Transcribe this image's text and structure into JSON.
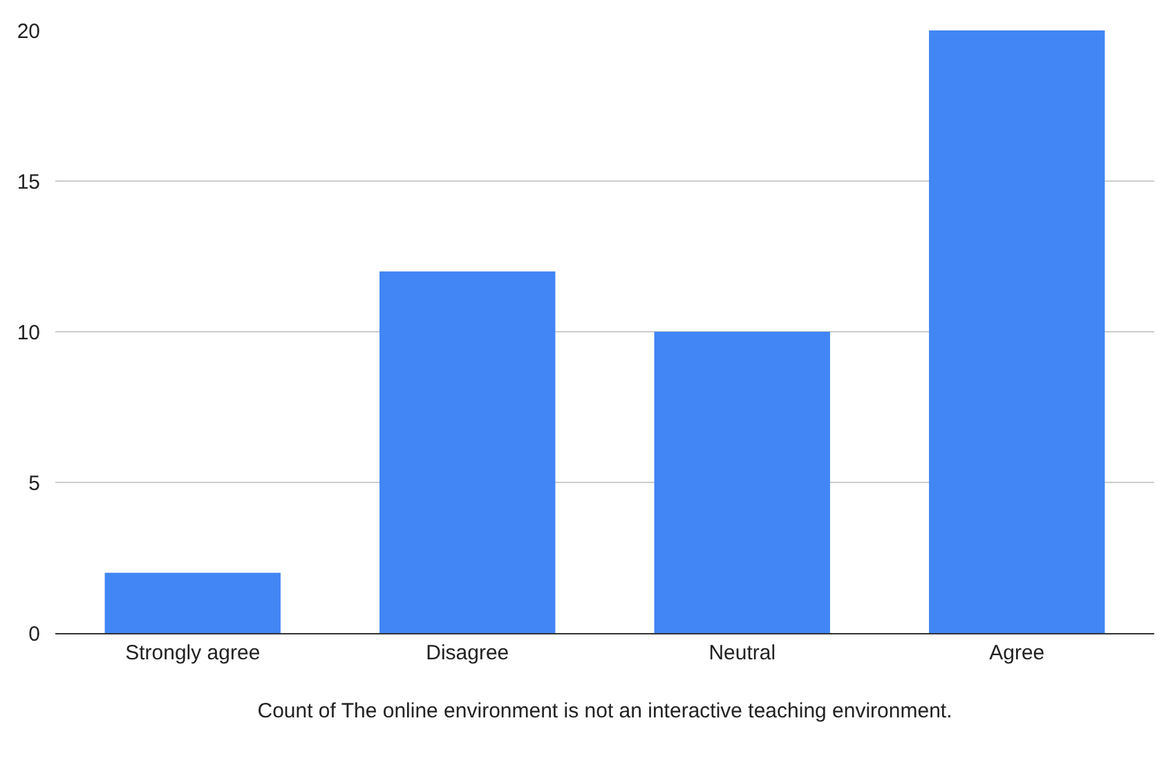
{
  "chart_data": {
    "type": "bar",
    "xlabel": "Count of The online environment is not an interactive teaching environment.",
    "categories": [
      "Strongly agree",
      "Disagree",
      "Neutral",
      "Agree"
    ],
    "values": [
      2,
      12,
      10,
      20
    ],
    "color": "#4285f4",
    "ylim": [
      0,
      20
    ],
    "yticks": [
      0,
      5,
      10,
      15,
      20
    ],
    "grid": "y"
  }
}
